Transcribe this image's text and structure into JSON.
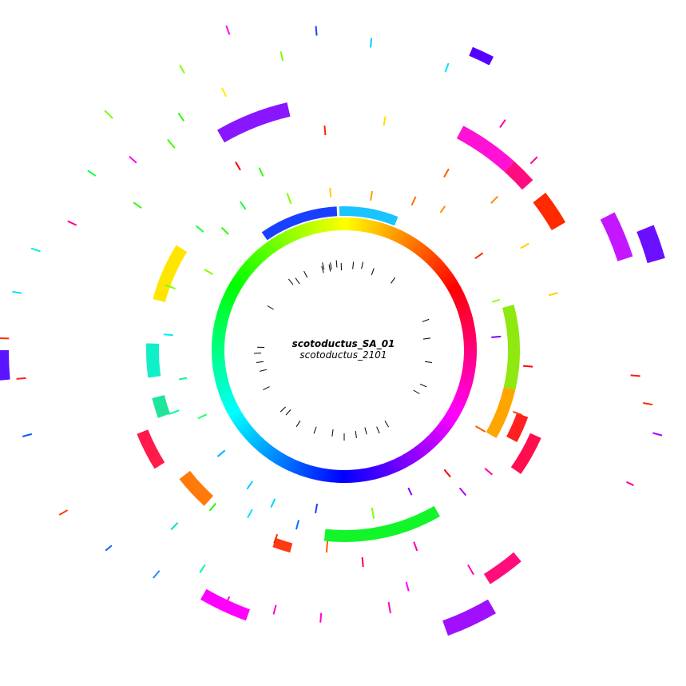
{
  "genome": {
    "title": "scotoductus_SA_01",
    "subtitle": "scotoductus_2101"
  },
  "colors": {
    "background": "#ffffff",
    "tick_marks": "#000000",
    "ring_start": "#ffff00",
    "ring_direction": "clockwise hue wheel: yellow at top, red at right, magenta/purple at bottom-right, blue at bottom, cyan at left, green at upper-left"
  }
}
